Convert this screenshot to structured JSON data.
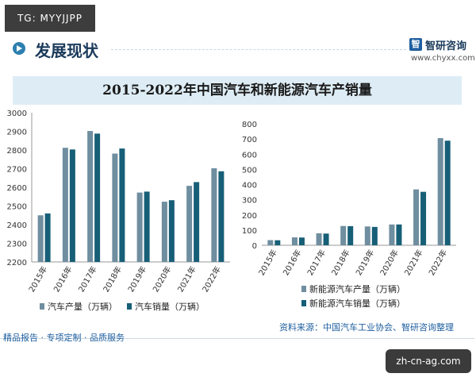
{
  "watermark_top": "TG: MYYJJPP",
  "section": {
    "title": "发展现状"
  },
  "logo": {
    "name": "智研咨询",
    "url": "www.chyxx.com"
  },
  "chart_title": "2015-2022年中国汽车和新能源汽车产销量",
  "footer": {
    "left": "精品报告 · 专项定制 · 品质服务",
    "source": "资料来源：中国汽车工业协会、智研咨询整理"
  },
  "watermark_bottom": "zh-cn-ag.com",
  "colors": {
    "production": "#6f8e9f",
    "sales": "#175f77",
    "band": "#deedf5",
    "accent": "#1f5fa0"
  },
  "chart_data": [
    {
      "type": "bar",
      "categories": [
        "2015年",
        "2016年",
        "2017年",
        "2018年",
        "2019年",
        "2020年",
        "2021年",
        "2022年"
      ],
      "series": [
        {
          "name": "汽车产量（万辆）",
          "values": [
            2450,
            2812,
            2902,
            2781,
            2572,
            2523,
            2608,
            2702
          ]
        },
        {
          "name": "汽车销量（万辆）",
          "values": [
            2460,
            2803,
            2888,
            2808,
            2577,
            2531,
            2628,
            2686
          ]
        }
      ],
      "ylim": [
        2200,
        3000
      ],
      "yticks": [
        2200,
        2300,
        2400,
        2500,
        2600,
        2700,
        2800,
        2900,
        3000
      ],
      "legend": "bottom",
      "grid": false
    },
    {
      "type": "bar",
      "categories": [
        "2015年",
        "2016年",
        "2017年",
        "2018年",
        "2019年",
        "2020年",
        "2021年",
        "2022年"
      ],
      "series": [
        {
          "name": "新能源汽车产量（万辆）",
          "values": [
            34,
            52,
            79,
            127,
            124,
            137,
            368,
            706
          ]
        },
        {
          "name": "新能源汽车销量（万辆）",
          "values": [
            33,
            51,
            77,
            126,
            121,
            137,
            352,
            689
          ]
        }
      ],
      "ylim": [
        0,
        800
      ],
      "yticks": [
        0,
        100,
        200,
        300,
        400,
        500,
        600,
        700,
        800
      ],
      "legend": "bottom",
      "grid": false
    }
  ]
}
